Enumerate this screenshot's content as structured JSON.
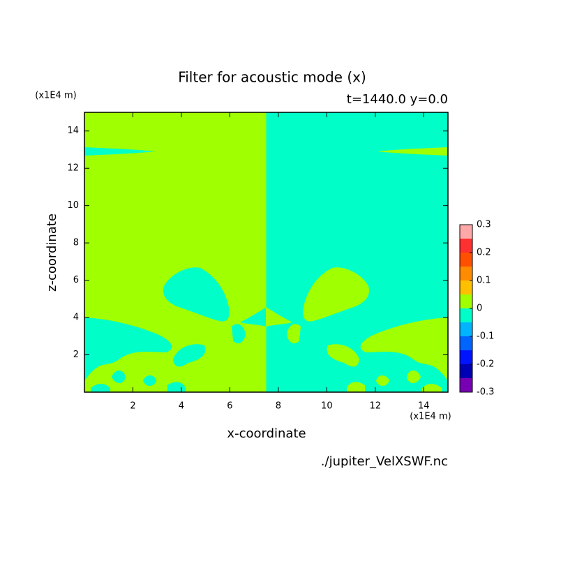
{
  "chart_data": {
    "type": "contour",
    "title": "Filter for acoustic mode (x)",
    "subtitle": "t=1440.0 y=0.0",
    "xlabel": "x-coordinate",
    "ylabel": "z-coordinate",
    "xunit": "(x1E4 m)",
    "yunit": "(x1E4 m)",
    "source": "./jupiter_VelXSWF.nc",
    "xlim": [
      0,
      15
    ],
    "ylim": [
      0,
      15
    ],
    "xticks": [
      2,
      4,
      6,
      8,
      10,
      12,
      14
    ],
    "yticks": [
      2,
      4,
      6,
      8,
      10,
      12,
      14
    ],
    "colorbar": {
      "levels": [
        -0.3,
        -0.25,
        -0.2,
        -0.15,
        -0.1,
        -0.05,
        0,
        0.05,
        0.1,
        0.15,
        0.2,
        0.25,
        0.3
      ],
      "colors": [
        "#7800b4",
        "#0000b4",
        "#0014ff",
        "#0064ff",
        "#00b4ff",
        "#00ffc8",
        "#a0ff00",
        "#ffc000",
        "#ff8c00",
        "#ff5000",
        "#ff3030",
        "#ffa8a8"
      ],
      "ticks": [
        -0.3,
        -0.2,
        -0.1,
        0,
        0.1,
        0.2,
        0.3
      ]
    }
  }
}
